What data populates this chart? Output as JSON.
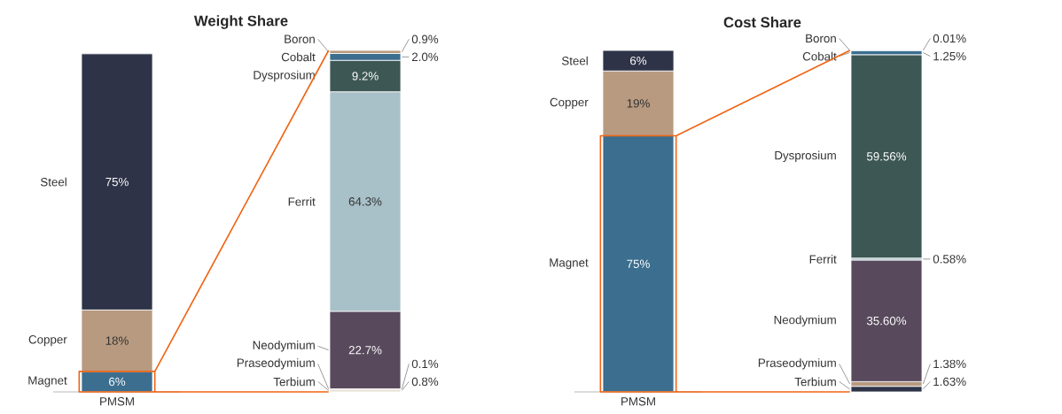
{
  "chart_data": [
    {
      "type": "bar",
      "title": "Weight Share",
      "stacked": true,
      "categories": [
        "PMSM",
        null
      ],
      "tick_labels": "x",
      "series": [
        {
          "name": "Magnet",
          "color": "#3b6e8f",
          "values": [
            6,
            null
          ],
          "value_labels": [
            "6%",
            null
          ]
        },
        {
          "name": "Copper",
          "color": "#b89a80",
          "values": [
            18,
            null
          ],
          "value_labels": [
            "18%",
            null
          ]
        },
        {
          "name": "Steel",
          "color": "#2e3347",
          "values": [
            75,
            null
          ],
          "value_labels": [
            "75%",
            null
          ]
        },
        {
          "name": "Terbium",
          "color": "#e8e0d4",
          "values": [
            null,
            0.8
          ],
          "value_labels": [
            null,
            "0.8%"
          ]
        },
        {
          "name": "Praseodymium",
          "color": "#2e3347",
          "values": [
            null,
            0.1
          ],
          "value_labels": [
            null,
            "0.1%"
          ]
        },
        {
          "name": "Neodymium",
          "color": "#584a5c",
          "values": [
            null,
            22.7
          ],
          "value_labels": [
            null,
            "22.7%"
          ]
        },
        {
          "name": "Ferrit",
          "color": "#a8c0c8",
          "values": [
            null,
            64.3
          ],
          "value_labels": [
            null,
            "64.3%"
          ]
        },
        {
          "name": "Dysprosium",
          "color": "#3d5754",
          "values": [
            null,
            9.2
          ],
          "value_labels": [
            null,
            "9.2%"
          ]
        },
        {
          "name": "Cobalt",
          "color": "#3b6e8f",
          "values": [
            null,
            2.0
          ],
          "value_labels": [
            null,
            "2.0%"
          ]
        },
        {
          "name": "Boron",
          "color": "#b89a80",
          "values": [
            null,
            0.9
          ],
          "value_labels": [
            null,
            "0.9%"
          ]
        }
      ]
    },
    {
      "type": "bar",
      "title": "Cost Share",
      "stacked": true,
      "categories": [
        "PMSM",
        null
      ],
      "tick_labels": "x",
      "series": [
        {
          "name": "Magnet",
          "color": "#3b6e8f",
          "values": [
            75,
            null
          ],
          "value_labels": [
            "75%",
            null
          ]
        },
        {
          "name": "Copper",
          "color": "#b89a80",
          "values": [
            19,
            null
          ],
          "value_labels": [
            "19%",
            null
          ]
        },
        {
          "name": "Steel",
          "color": "#2e3347",
          "values": [
            6,
            null
          ],
          "value_labels": [
            "6%",
            null
          ]
        },
        {
          "name": "Terbium",
          "color": "#2e3347",
          "values": [
            null,
            1.63
          ],
          "value_labels": [
            null,
            "1.63%"
          ]
        },
        {
          "name": "Praseodymium",
          "color": "#b89a80",
          "values": [
            null,
            1.38
          ],
          "value_labels": [
            null,
            "1.38%"
          ]
        },
        {
          "name": "Neodymium",
          "color": "#584a5c",
          "values": [
            null,
            35.6
          ],
          "value_labels": [
            null,
            "35.60%"
          ]
        },
        {
          "name": "Ferrit",
          "color": "#a8c0c8",
          "values": [
            null,
            0.58
          ],
          "value_labels": [
            null,
            "0.58%"
          ]
        },
        {
          "name": "Dysprosium",
          "color": "#3d5754",
          "values": [
            null,
            59.56
          ],
          "value_labels": [
            null,
            "59.56%"
          ]
        },
        {
          "name": "Cobalt",
          "color": "#3b6e8f",
          "values": [
            null,
            1.25
          ],
          "value_labels": [
            null,
            "1.25%"
          ]
        },
        {
          "name": "Boron",
          "color": "#e8e0d4",
          "values": [
            null,
            0.01
          ],
          "value_labels": [
            null,
            "0.01%"
          ]
        }
      ]
    }
  ]
}
